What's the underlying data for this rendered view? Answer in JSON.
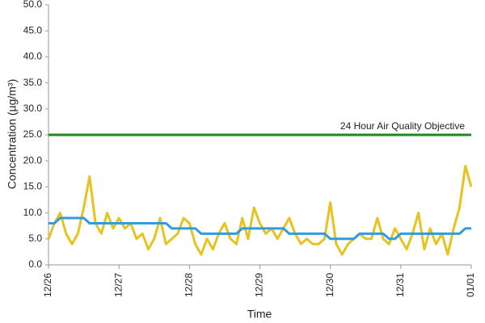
{
  "chart_data": {
    "type": "line",
    "x_label": "Time",
    "y_label": "Concentration (µg/m³)",
    "x": [
      0,
      2,
      4,
      6,
      8,
      10,
      12,
      14,
      16,
      18,
      20,
      22,
      24,
      26,
      28,
      30,
      32,
      34,
      36,
      38,
      40,
      42,
      44,
      46,
      48,
      50,
      52,
      54,
      56,
      58,
      60,
      62,
      64,
      66,
      68,
      70,
      72,
      74,
      76,
      78,
      80,
      82,
      84,
      86,
      88,
      90,
      92,
      94,
      96,
      98,
      100,
      102,
      104,
      106,
      108,
      110,
      112,
      114,
      116,
      118,
      120,
      122,
      124,
      126,
      128,
      130,
      132,
      134,
      136,
      138,
      140,
      142,
      144
    ],
    "series": [
      {
        "color": "#e8c21e",
        "values": [
          5,
          8,
          10,
          6,
          4,
          6,
          11,
          17,
          8,
          6,
          10,
          7,
          9,
          7,
          8,
          5,
          6,
          3,
          5,
          9,
          4,
          5,
          6,
          9,
          8,
          4,
          2,
          5,
          3,
          6,
          8,
          5,
          4,
          9,
          5,
          11,
          8,
          6,
          7,
          5,
          7,
          9,
          6,
          4,
          5,
          4,
          4,
          5,
          12,
          4,
          2,
          4,
          5,
          6,
          5,
          5,
          9,
          5,
          4,
          7,
          5,
          3,
          6,
          10,
          3,
          7,
          4,
          6,
          2,
          7,
          11,
          19,
          15
        ]
      },
      {
        "color": "#2f9be0",
        "values": [
          8,
          8,
          9,
          9,
          9,
          9,
          9,
          8,
          8,
          8,
          8,
          8,
          8,
          8,
          8,
          8,
          8,
          8,
          8,
          8,
          8,
          7,
          7,
          7,
          7,
          7,
          6,
          6,
          6,
          6,
          6,
          6,
          6,
          7,
          7,
          7,
          7,
          7,
          7,
          7,
          7,
          6,
          6,
          6,
          6,
          6,
          6,
          6,
          5,
          5,
          5,
          5,
          5,
          6,
          6,
          6,
          6,
          6,
          5,
          5,
          6,
          6,
          6,
          6,
          6,
          6,
          6,
          6,
          6,
          6,
          6,
          7,
          7
        ]
      }
    ],
    "objective": {
      "value": 25,
      "label": "24 Hour Air Quality Objective",
      "color": "#1e8a1e"
    },
    "xlim": [
      0,
      144
    ],
    "xticks": [
      {
        "value": 0,
        "label": "12/26"
      },
      {
        "value": 24,
        "label": "12/27"
      },
      {
        "value": 48,
        "label": "12/28"
      },
      {
        "value": 72,
        "label": "12/29"
      },
      {
        "value": 96,
        "label": "12/30"
      },
      {
        "value": 120,
        "label": "12/31"
      },
      {
        "value": 144,
        "label": "01/01"
      }
    ],
    "ylim": [
      0,
      50
    ],
    "yticks": [
      {
        "value": 0,
        "label": "0.0"
      },
      {
        "value": 5,
        "label": "5.0"
      },
      {
        "value": 10,
        "label": "10.0"
      },
      {
        "value": 15,
        "label": "15.0"
      },
      {
        "value": 20,
        "label": "20.0"
      },
      {
        "value": 25,
        "label": "25.0"
      },
      {
        "value": 30,
        "label": "30.0"
      },
      {
        "value": 35,
        "label": "35.0"
      },
      {
        "value": 40,
        "label": "40.0"
      },
      {
        "value": 45,
        "label": "45.0"
      },
      {
        "value": 50,
        "label": "50.0"
      }
    ],
    "grid": false
  }
}
